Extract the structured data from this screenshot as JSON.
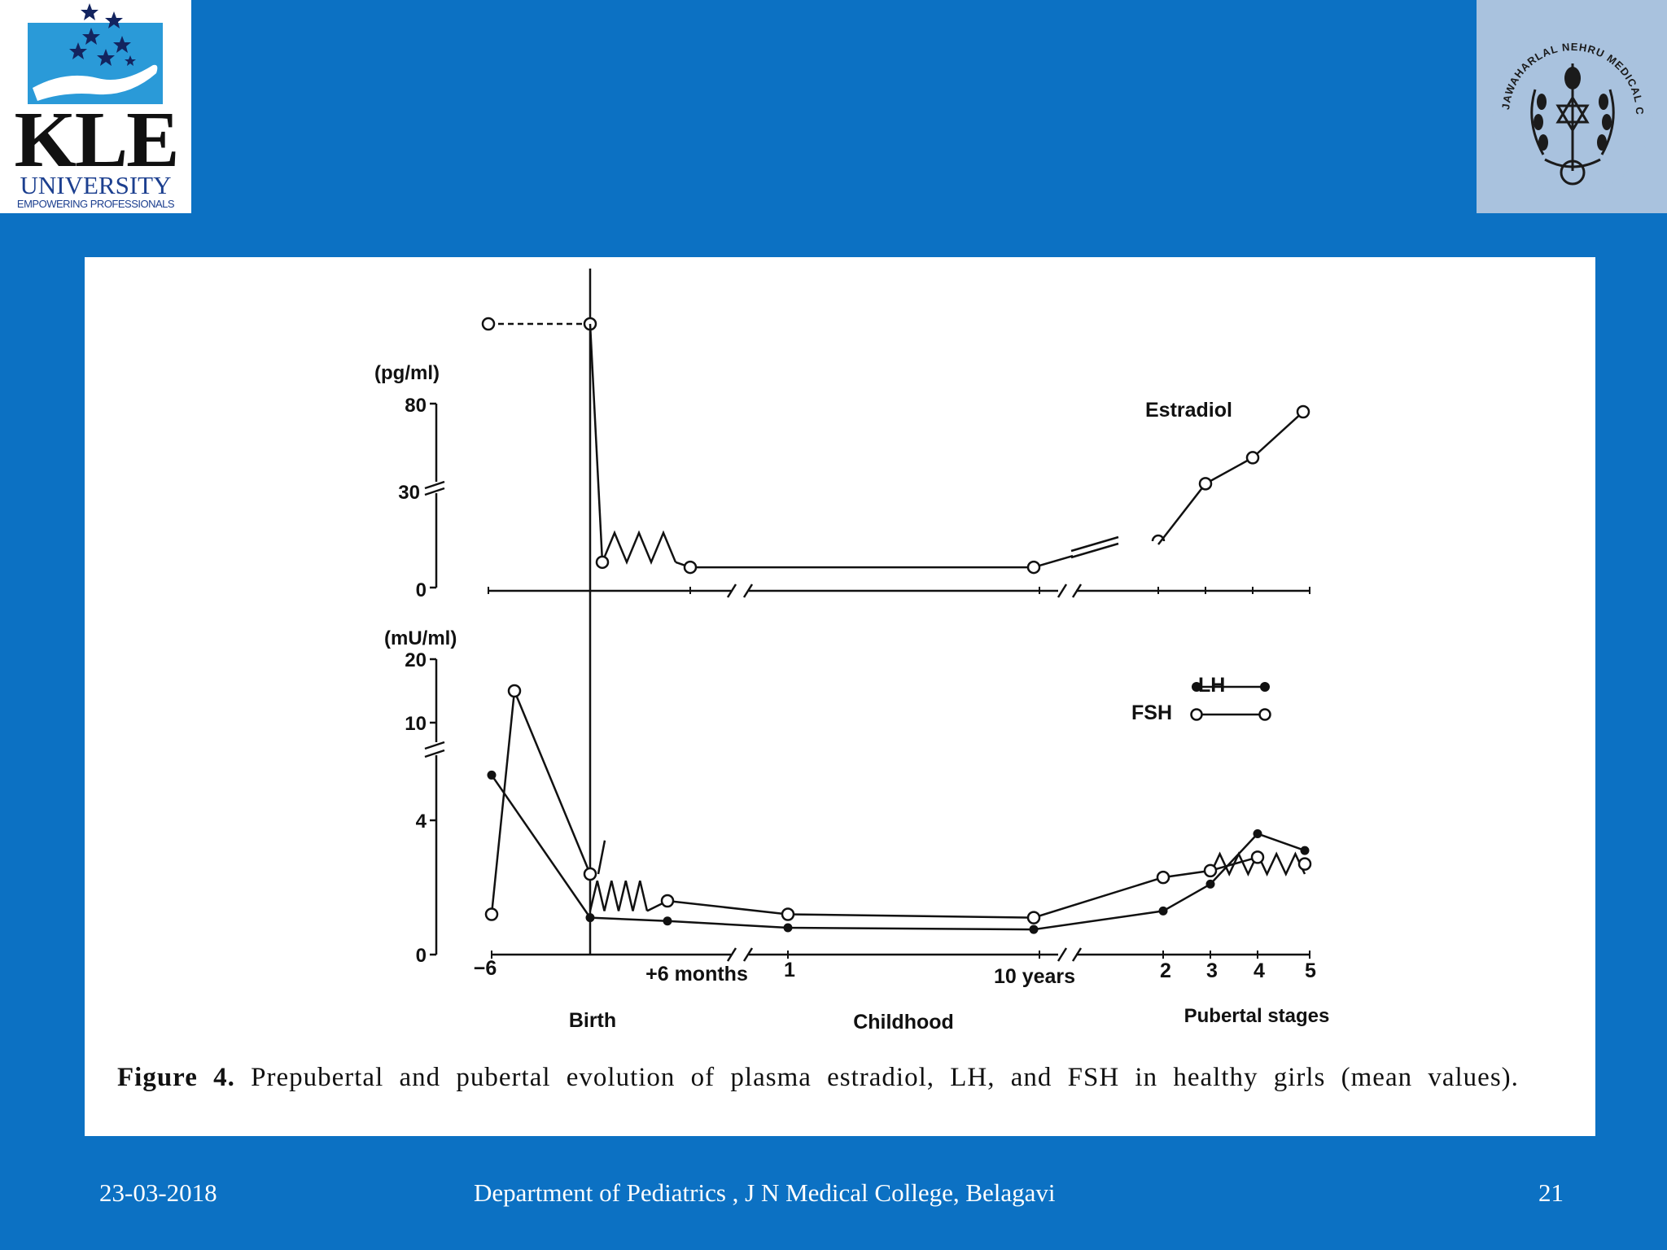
{
  "header": {
    "left_logo": {
      "name": "KLE",
      "line2": "UNIVERSITY",
      "tagline": "EMPOWERING PROFESSIONALS"
    },
    "right_logo": {
      "text": "JAWAHARLAL NEHRU MEDICAL COLLEGE, BELGAUM."
    }
  },
  "figure": {
    "caption_label": "Figure 4.",
    "caption_text": "Prepubertal and pubertal evolution of plasma estradiol, LH, and FSH in healthy girls (mean values)."
  },
  "chart_data": [
    {
      "type": "line",
      "ylabel": "(pg/ml)",
      "yticks": [
        "0",
        "30",
        "80"
      ],
      "y_axis_break": true,
      "x_axis_breaks": true,
      "series": [
        {
          "name": "Estradiol",
          "marker": "open-circle",
          "segments": [
            {
              "style": "dashed",
              "points": [
                {
                  "x": "-6",
                  "y": "above 80"
                },
                {
                  "x": "Birth",
                  "y": "above 80"
                }
              ]
            },
            {
              "style": "solid",
              "points": [
                {
                  "x": "Birth",
                  "y": "above 80"
                },
                {
                  "x": "Birth (+0.5 mo)",
                  "y": 10
                },
                {
                  "x": "+6 months",
                  "y": 8
                },
                {
                  "x": "10 years",
                  "y": 8
                }
              ]
            },
            {
              "style": "solid",
              "points": [
                {
                  "x": "2",
                  "y": 17
                },
                {
                  "x": "3",
                  "y": 33
                },
                {
                  "x": "4",
                  "y": 50
                },
                {
                  "x": "5",
                  "y": 80
                }
              ]
            }
          ]
        }
      ],
      "annotations": [
        "Estradiol"
      ]
    },
    {
      "type": "line",
      "ylabel": "(mU/ml)",
      "yticks": [
        "0",
        "4",
        "10",
        "20"
      ],
      "y_axis_break": true,
      "x_axis_breaks": true,
      "x_ticks": [
        "−6",
        "+6 months",
        "1",
        "10 years",
        "2",
        "3",
        "4",
        "5"
      ],
      "x_group_labels": [
        "Birth",
        "Childhood",
        "Pubertal stages"
      ],
      "legend": {
        "placement": "top-right",
        "entries": [
          "LH",
          "FSH"
        ]
      },
      "series": [
        {
          "name": "LH",
          "marker": "filled-circle",
          "points": [
            {
              "x": "−6",
              "y": 7
            },
            {
              "x": "Birth",
              "y": 1.1
            },
            {
              "x": "+6 months",
              "y": 1.0
            },
            {
              "x": "1",
              "y": 0.8
            },
            {
              "x": "10 years",
              "y": 0.75
            },
            {
              "x": "2",
              "y": 1.3
            },
            {
              "x": "3",
              "y": 2.1
            },
            {
              "x": "4",
              "y": 3.6
            },
            {
              "x": "5",
              "y": 3.1
            }
          ]
        },
        {
          "name": "FSH",
          "marker": "open-circle",
          "points": [
            {
              "x": "−6",
              "y": 1.2
            },
            {
              "x": "−4",
              "y": 15
            },
            {
              "x": "Birth",
              "y": 2.4
            },
            {
              "x": "+6 months",
              "y": 1.6
            },
            {
              "x": "1",
              "y": 1.2
            },
            {
              "x": "10 years",
              "y": 1.1
            },
            {
              "x": "2",
              "y": 2.3
            },
            {
              "x": "3",
              "y": 2.5
            },
            {
              "x": "4",
              "y": 2.9
            },
            {
              "x": "5",
              "y": 2.7
            }
          ]
        }
      ]
    }
  ],
  "footer": {
    "date": "23-03-2018",
    "department": "Department of Pediatrics , J N Medical College, Belagavi",
    "page_number": "21"
  }
}
